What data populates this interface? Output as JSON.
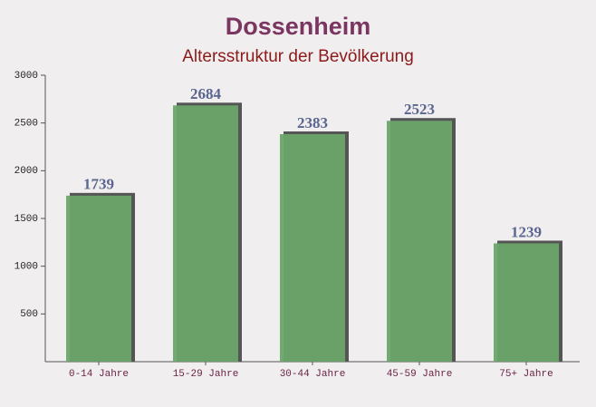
{
  "chart_data": {
    "type": "bar",
    "title": "Dossenheim",
    "subtitle": "Altersstruktur der Bevölkerung",
    "categories": [
      "0-14 Jahre",
      "15-29 Jahre",
      "30-44 Jahre",
      "45-59 Jahre",
      "75+ Jahre"
    ],
    "values": [
      1739,
      2684,
      2383,
      2523,
      1239
    ],
    "color": "#6aa56a",
    "ylim": [
      0,
      3000
    ],
    "yticks": [
      500,
      1000,
      1500,
      2000,
      2500,
      3000
    ],
    "grid": false
  }
}
